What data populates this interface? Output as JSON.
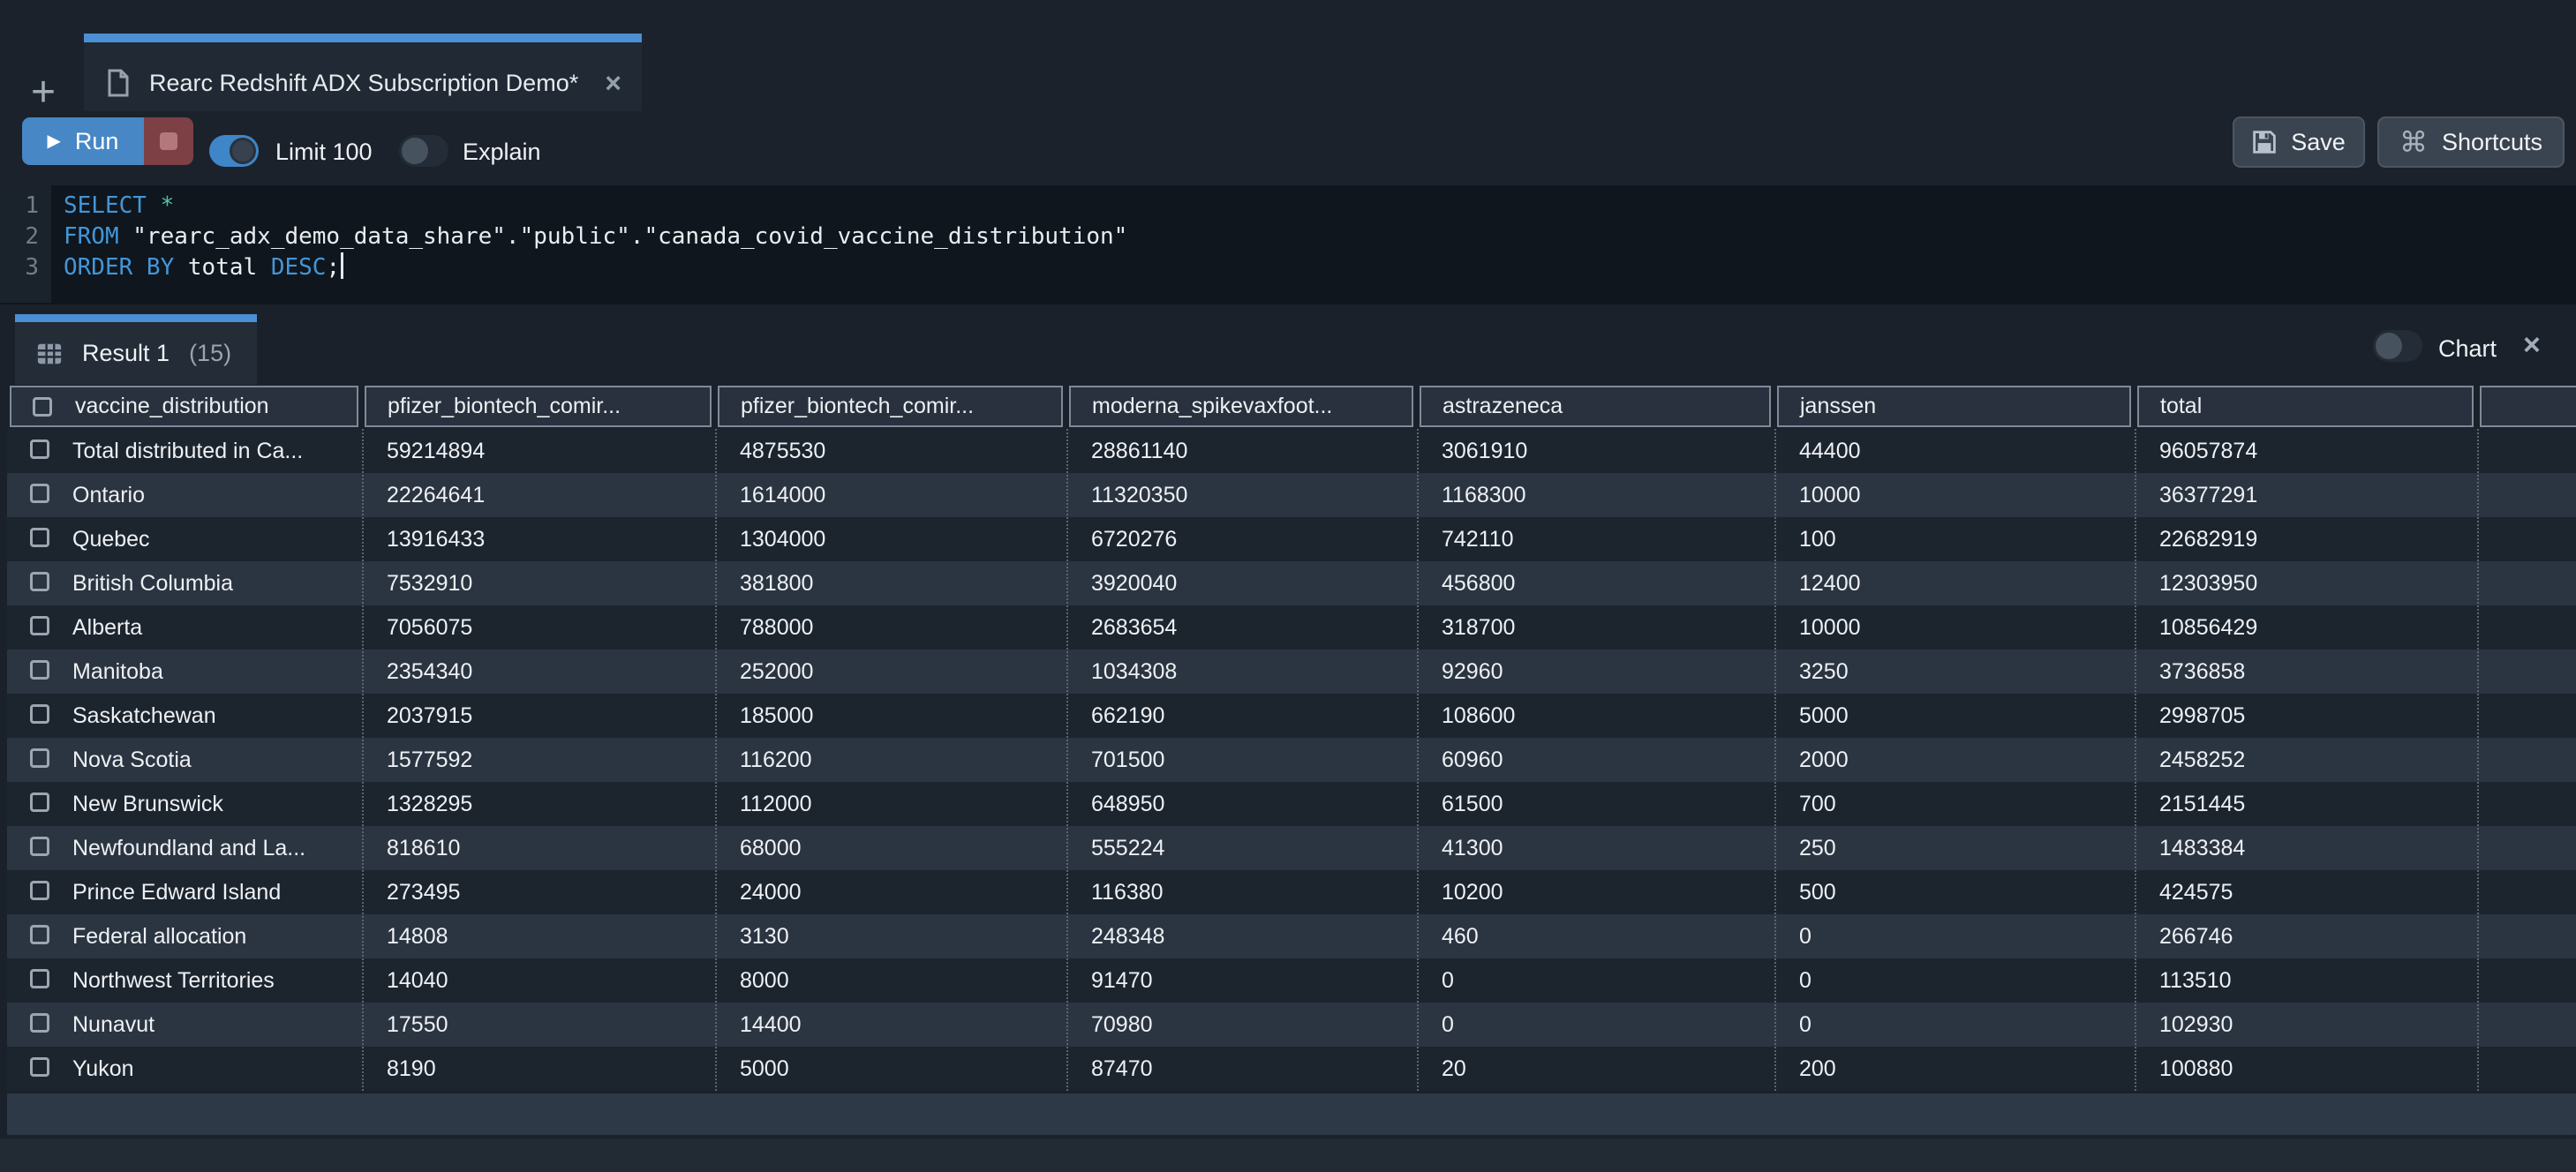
{
  "tab_bar": {
    "new_tab_label": "+",
    "tab": {
      "title": "Rearc Redshift ADX Subscription Demo*",
      "close_label": "×"
    }
  },
  "toolbar": {
    "run_label": "Run",
    "play_glyph": "▶",
    "limit": {
      "label": "Limit 100",
      "on": true
    },
    "explain": {
      "label": "Explain",
      "on": false
    },
    "save_label": "Save",
    "shortcuts_label": "Shortcuts",
    "shortcuts_icon": "⌘"
  },
  "editor": {
    "lines": [
      {
        "number": "1",
        "segments": [
          {
            "type": "keyword",
            "text": "SELECT"
          },
          {
            "type": "plain",
            "text": " "
          },
          {
            "type": "star",
            "text": "*"
          }
        ]
      },
      {
        "number": "2",
        "segments": [
          {
            "type": "keyword",
            "text": "FROM"
          },
          {
            "type": "plain",
            "text": " "
          },
          {
            "type": "string",
            "text": "\"rearc_adx_demo_data_share\".\"public\".\"canada_covid_vaccine_distribution\""
          }
        ]
      },
      {
        "number": "3",
        "cursor": true,
        "segments": [
          {
            "type": "keyword",
            "text": "ORDER BY"
          },
          {
            "type": "plain",
            "text": " total "
          },
          {
            "type": "keyword",
            "text": "DESC"
          },
          {
            "type": "plain",
            "text": ";"
          }
        ]
      }
    ]
  },
  "results": {
    "tab_label": "Result 1",
    "tab_count": "(15)",
    "chart": {
      "label": "Chart",
      "on": false,
      "close_label": "×"
    },
    "table": {
      "columns": [
        "vaccine_distribution",
        "pfizer_biontech_comir...",
        "pfizer_biontech_comir...",
        "moderna_spikevaxfoot...",
        "astrazeneca",
        "janssen",
        "total"
      ],
      "rows": [
        [
          "Total distributed in Ca...",
          "59214894",
          "4875530",
          "28861140",
          "3061910",
          "44400",
          "96057874"
        ],
        [
          "Ontario",
          "22264641",
          "1614000",
          "11320350",
          "1168300",
          "10000",
          "36377291"
        ],
        [
          "Quebec",
          "13916433",
          "1304000",
          "6720276",
          "742110",
          "100",
          "22682919"
        ],
        [
          "British Columbia",
          "7532910",
          "381800",
          "3920040",
          "456800",
          "12400",
          "12303950"
        ],
        [
          "Alberta",
          "7056075",
          "788000",
          "2683654",
          "318700",
          "10000",
          "10856429"
        ],
        [
          "Manitoba",
          "2354340",
          "252000",
          "1034308",
          "92960",
          "3250",
          "3736858"
        ],
        [
          "Saskatchewan",
          "2037915",
          "185000",
          "662190",
          "108600",
          "5000",
          "2998705"
        ],
        [
          "Nova Scotia",
          "1577592",
          "116200",
          "701500",
          "60960",
          "2000",
          "2458252"
        ],
        [
          "New Brunswick",
          "1328295",
          "112000",
          "648950",
          "61500",
          "700",
          "2151445"
        ],
        [
          "Newfoundland and La...",
          "818610",
          "68000",
          "555224",
          "41300",
          "250",
          "1483384"
        ],
        [
          "Prince Edward Island",
          "273495",
          "24000",
          "116380",
          "10200",
          "500",
          "424575"
        ],
        [
          "Federal allocation",
          "14808",
          "3130",
          "248348",
          "460",
          "0",
          "266746"
        ],
        [
          "Northwest Territories",
          "14040",
          "8000",
          "91470",
          "0",
          "0",
          "113510"
        ],
        [
          "Nunavut",
          "17550",
          "14400",
          "70980",
          "0",
          "0",
          "102930"
        ],
        [
          "Yukon",
          "8190",
          "5000",
          "87470",
          "20",
          "200",
          "100880"
        ]
      ]
    }
  },
  "colors": {
    "accent_blue": "#4b8fd4",
    "run_blue": "#4787c5",
    "stop_red": "#7d4045",
    "header_border": "#7e8a99",
    "row_odd": "#1c242e",
    "row_even": "#2b3542"
  }
}
